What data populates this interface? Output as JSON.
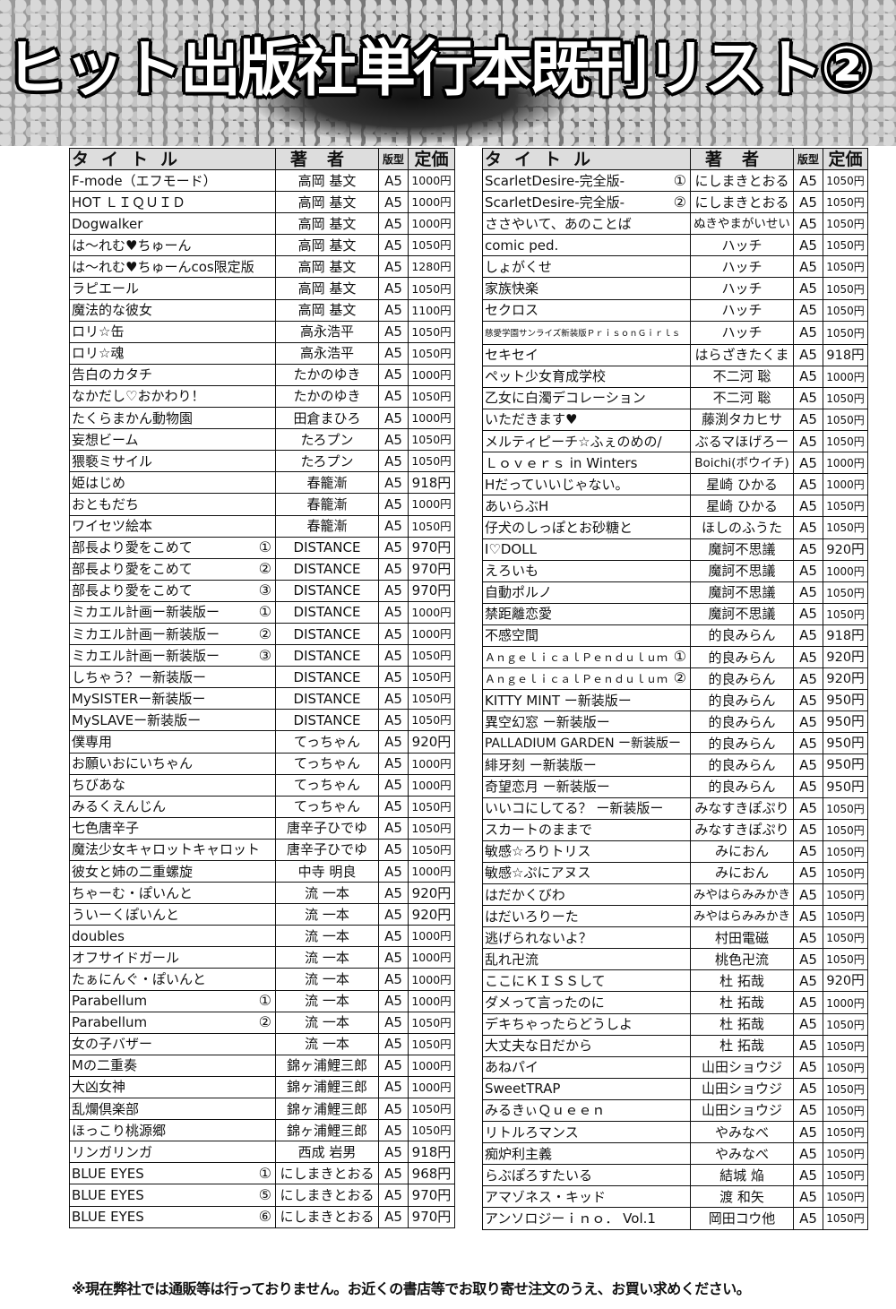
{
  "banner": {
    "title": "ヒット出版社単行本既刊リスト②"
  },
  "headers": {
    "title": "タイトル",
    "author": "著者",
    "format": "版型",
    "price": "定価"
  },
  "left_rows": [
    [
      "F-mode（エフモード）",
      "",
      "高岡 基文",
      "A5",
      "1000円"
    ],
    [
      "HOT ＬＩＱＵＩＤ",
      "",
      "高岡 基文",
      "A5",
      "1000円"
    ],
    [
      "Dogwalker",
      "",
      "高岡 基文",
      "A5",
      "1000円"
    ],
    [
      "は〜れむ♥ちゅーん",
      "",
      "高岡 基文",
      "A5",
      "1050円"
    ],
    [
      "は〜れむ♥ちゅーんcos限定版",
      "",
      "高岡 基文",
      "A5",
      "1280円"
    ],
    [
      "ラピエール",
      "",
      "高岡 基文",
      "A5",
      "1050円"
    ],
    [
      "魔法的な彼女",
      "",
      "高岡 基文",
      "A5",
      "1100円"
    ],
    [
      "ロリ☆缶",
      "",
      "高永浩平",
      "A5",
      "1050円"
    ],
    [
      "ロリ☆魂",
      "",
      "高永浩平",
      "A5",
      "1050円"
    ],
    [
      "告白のカタチ",
      "",
      "たかのゆき",
      "A5",
      "1000円"
    ],
    [
      "なかだし♡おかわり！",
      "",
      "たかのゆき",
      "A5",
      "1050円"
    ],
    [
      "たくらまかん動物園",
      "",
      "田倉まひろ",
      "A5",
      "1000円"
    ],
    [
      "妄想ビーム",
      "",
      "たろプン",
      "A5",
      "1050円"
    ],
    [
      "猥褻ミサイル",
      "",
      "たろプン",
      "A5",
      "1050円"
    ],
    [
      "姫はじめ",
      "",
      "春籠漸",
      "A5",
      "918円"
    ],
    [
      "おともだち",
      "",
      "春籠漸",
      "A5",
      "1000円"
    ],
    [
      "ワイセツ絵本",
      "",
      "春籠漸",
      "A5",
      "1050円"
    ],
    [
      "部長より愛をこめて",
      "①",
      "DISTANCE",
      "A5",
      "970円"
    ],
    [
      "部長より愛をこめて",
      "②",
      "DISTANCE",
      "A5",
      "970円"
    ],
    [
      "部長より愛をこめて",
      "③",
      "DISTANCE",
      "A5",
      "970円"
    ],
    [
      "ミカエル計画ー新装版ー",
      "①",
      "DISTANCE",
      "A5",
      "1000円"
    ],
    [
      "ミカエル計画ー新装版ー",
      "②",
      "DISTANCE",
      "A5",
      "1000円"
    ],
    [
      "ミカエル計画ー新装版ー",
      "③",
      "DISTANCE",
      "A5",
      "1050円"
    ],
    [
      "しちゃう？ー新装版ー",
      "",
      "DISTANCE",
      "A5",
      "1050円"
    ],
    [
      "MySISTERー新装版ー",
      "",
      "DISTANCE",
      "A5",
      "1050円"
    ],
    [
      "MySLAVEー新装版ー",
      "",
      "DISTANCE",
      "A5",
      "1050円"
    ],
    [
      "僕専用",
      "",
      "てっちゃん",
      "A5",
      "920円"
    ],
    [
      "お願いおにいちゃん",
      "",
      "てっちゃん",
      "A5",
      "1000円"
    ],
    [
      "ちびあな",
      "",
      "てっちゃん",
      "A5",
      "1000円"
    ],
    [
      "みるくえんじん",
      "",
      "てっちゃん",
      "A5",
      "1050円"
    ],
    [
      "七色唐辛子",
      "",
      "唐辛子ひでゆ",
      "A5",
      "1050円"
    ],
    [
      "魔法少女キャロットキャロット",
      "",
      "唐辛子ひでゆ",
      "A5",
      "1050円"
    ],
    [
      "彼女と姉の二重螺旋",
      "",
      "中寺 明良",
      "A5",
      "1000円"
    ],
    [
      "ちゃーむ・ぽいんと",
      "",
      "流 一本",
      "A5",
      "920円"
    ],
    [
      "ういーくぽいんと",
      "",
      "流 一本",
      "A5",
      "920円"
    ],
    [
      "doubles",
      "",
      "流 一本",
      "A5",
      "1000円"
    ],
    [
      "オフサイドガール",
      "",
      "流 一本",
      "A5",
      "1000円"
    ],
    [
      "たぁにんぐ・ぽいんと",
      "",
      "流 一本",
      "A5",
      "1000円"
    ],
    [
      "Parabellum",
      "①",
      "流 一本",
      "A5",
      "1000円"
    ],
    [
      "Parabellum",
      "②",
      "流 一本",
      "A5",
      "1050円"
    ],
    [
      "女の子バザー",
      "",
      "流 一本",
      "A5",
      "1050円"
    ],
    [
      "Mの二重奏",
      "",
      "錦ヶ浦鯉三郎",
      "A5",
      "1000円"
    ],
    [
      "大凶女神",
      "",
      "錦ヶ浦鯉三郎",
      "A5",
      "1000円"
    ],
    [
      "乱爛倶楽部",
      "",
      "錦ヶ浦鯉三郎",
      "A5",
      "1050円"
    ],
    [
      "ほっこり桃源郷",
      "",
      "錦ヶ浦鯉三郎",
      "A5",
      "1050円"
    ],
    [
      "リンガリンガ",
      "",
      "西成 岩男",
      "A5",
      "918円"
    ],
    [
      "BLUE EYES",
      "①",
      "にしまきとおる",
      "A5",
      "968円"
    ],
    [
      "BLUE EYES",
      "⑤",
      "にしまきとおる",
      "A5",
      "970円"
    ],
    [
      "BLUE EYES",
      "⑥",
      "にしまきとおる",
      "A5",
      "970円"
    ]
  ],
  "right_rows": [
    [
      "ScarletDesire-完全版-",
      "①",
      "にしまきとおる",
      "A5",
      "1050円"
    ],
    [
      "ScarletDesire-完全版-",
      "②",
      "にしまきとおる",
      "A5",
      "1050円"
    ],
    [
      "ささやいて、あのことば",
      "",
      "ぬきやまがいせい",
      "A5",
      "1050円"
    ],
    [
      "comic ped.",
      "",
      "ハッチ",
      "A5",
      "1050円"
    ],
    [
      "しょがくせ",
      "",
      "ハッチ",
      "A5",
      "1050円"
    ],
    [
      "家族快楽",
      "",
      "ハッチ",
      "A5",
      "1050円"
    ],
    [
      "セクロス",
      "",
      "ハッチ",
      "A5",
      "1050円"
    ],
    [
      "慈愛学園サンライズ新装版ＰｒｉｓｏｎＧｉｒｌｓ",
      "",
      "ハッチ",
      "A5",
      "1050円"
    ],
    [
      "セキセイ",
      "",
      "はらざきたくま",
      "A5",
      "918円"
    ],
    [
      "ペット少女育成学校",
      "",
      "不二河 聡",
      "A5",
      "1000円"
    ],
    [
      "乙女に白濁デコレーション",
      "",
      "不二河 聡",
      "A5",
      "1050円"
    ],
    [
      "いただきます♥",
      "",
      "藤渕タカヒサ",
      "A5",
      "1050円"
    ],
    [
      "メルティピーチ☆ふぇのめの/",
      "",
      "ぶるマほげろー",
      "A5",
      "1050円"
    ],
    [
      "Ｌｏｖｅｒｓ in Winters",
      "",
      "Boichi(ボウイチ)",
      "A5",
      "1000円"
    ],
    [
      "Hだっていいじゃない。",
      "",
      "星崎 ひかる",
      "A5",
      "1000円"
    ],
    [
      "あいらぶH",
      "",
      "星崎 ひかる",
      "A5",
      "1050円"
    ],
    [
      "仔犬のしっぽとお砂糖と",
      "",
      "ほしのふうた",
      "A5",
      "1050円"
    ],
    [
      "I♡DOLL",
      "",
      "魔訶不思議",
      "A5",
      "920円"
    ],
    [
      "えろいも",
      "",
      "魔訶不思議",
      "A5",
      "1000円"
    ],
    [
      "自動ポルノ",
      "",
      "魔訶不思議",
      "A5",
      "1050円"
    ],
    [
      "禁距離恋愛",
      "",
      "魔訶不思議",
      "A5",
      "1050円"
    ],
    [
      "不感空間",
      "",
      "的良みらん",
      "A5",
      "918円"
    ],
    [
      "ＡｎｇｅｌｉｃａｌＰｅｎｄｕｌｕｍ",
      "①",
      "的良みらん",
      "A5",
      "920円"
    ],
    [
      "ＡｎｇｅｌｉｃａｌＰｅｎｄｕｌｕｍ",
      "②",
      "的良みらん",
      "A5",
      "920円"
    ],
    [
      "KITTY MINT ー新装版ー",
      "",
      "的良みらん",
      "A5",
      "950円"
    ],
    [
      "異空幻窓 ー新装版ー",
      "",
      "的良みらん",
      "A5",
      "950円"
    ],
    [
      "PALLADIUM GARDEN ー新装版ー",
      "",
      "的良みらん",
      "A5",
      "950円"
    ],
    [
      "緋牙刻 ー新装版ー",
      "",
      "的良みらん",
      "A5",
      "950円"
    ],
    [
      "奇望恋月 ー新装版ー",
      "",
      "的良みらん",
      "A5",
      "950円"
    ],
    [
      "いいコにしてる？ ー新装版ー",
      "",
      "みなすきぽぷり",
      "A5",
      "1050円"
    ],
    [
      "スカートのままで",
      "",
      "みなすきぽぷり",
      "A5",
      "1050円"
    ],
    [
      "敏感☆ろりトリス",
      "",
      "みにおん",
      "A5",
      "1050円"
    ],
    [
      "敏感☆ぷにアヌス",
      "",
      "みにおん",
      "A5",
      "1050円"
    ],
    [
      "はだかくびわ",
      "",
      "みやはらみみかき",
      "A5",
      "1050円"
    ],
    [
      "はだいろりーた",
      "",
      "みやはらみみかき",
      "A5",
      "1050円"
    ],
    [
      "逃げられないよ？",
      "",
      "村田電磁",
      "A5",
      "1050円"
    ],
    [
      "乱れ卍流",
      "",
      "桃色卍流",
      "A5",
      "1050円"
    ],
    [
      "ここにＫＩＳＳして",
      "",
      "杜 拓哉",
      "A5",
      "920円"
    ],
    [
      "ダメって言ったのに",
      "",
      "杜 拓哉",
      "A5",
      "1000円"
    ],
    [
      "デキちゃったらどうしよ",
      "",
      "杜 拓哉",
      "A5",
      "1050円"
    ],
    [
      "大丈夫な日だから",
      "",
      "杜 拓哉",
      "A5",
      "1050円"
    ],
    [
      "あねパイ",
      "",
      "山田ショウジ",
      "A5",
      "1050円"
    ],
    [
      "SweetTRAP",
      "",
      "山田ショウジ",
      "A5",
      "1050円"
    ],
    [
      "みるきぃＱｕｅｅｎ",
      "",
      "山田ショウジ",
      "A5",
      "1050円"
    ],
    [
      "リトルろマンス",
      "",
      "やみなべ",
      "A5",
      "1050円"
    ],
    [
      "痴炉利主義",
      "",
      "やみなべ",
      "A5",
      "1050円"
    ],
    [
      "らぶぽろすたいる",
      "",
      "結城 焔",
      "A5",
      "1050円"
    ],
    [
      "アマゾネス・キッド",
      "",
      "渡 和矢",
      "A5",
      "1050円"
    ],
    [
      "アンソロジーｉｎｏ． Vol.1",
      "",
      "岡田コウ他",
      "A5",
      "1050円"
    ]
  ],
  "footer": {
    "note": "※現在弊社では通販等は行っておりません。お近くの書店等でお取り寄せ注文のうえ、お買い求めください。"
  }
}
